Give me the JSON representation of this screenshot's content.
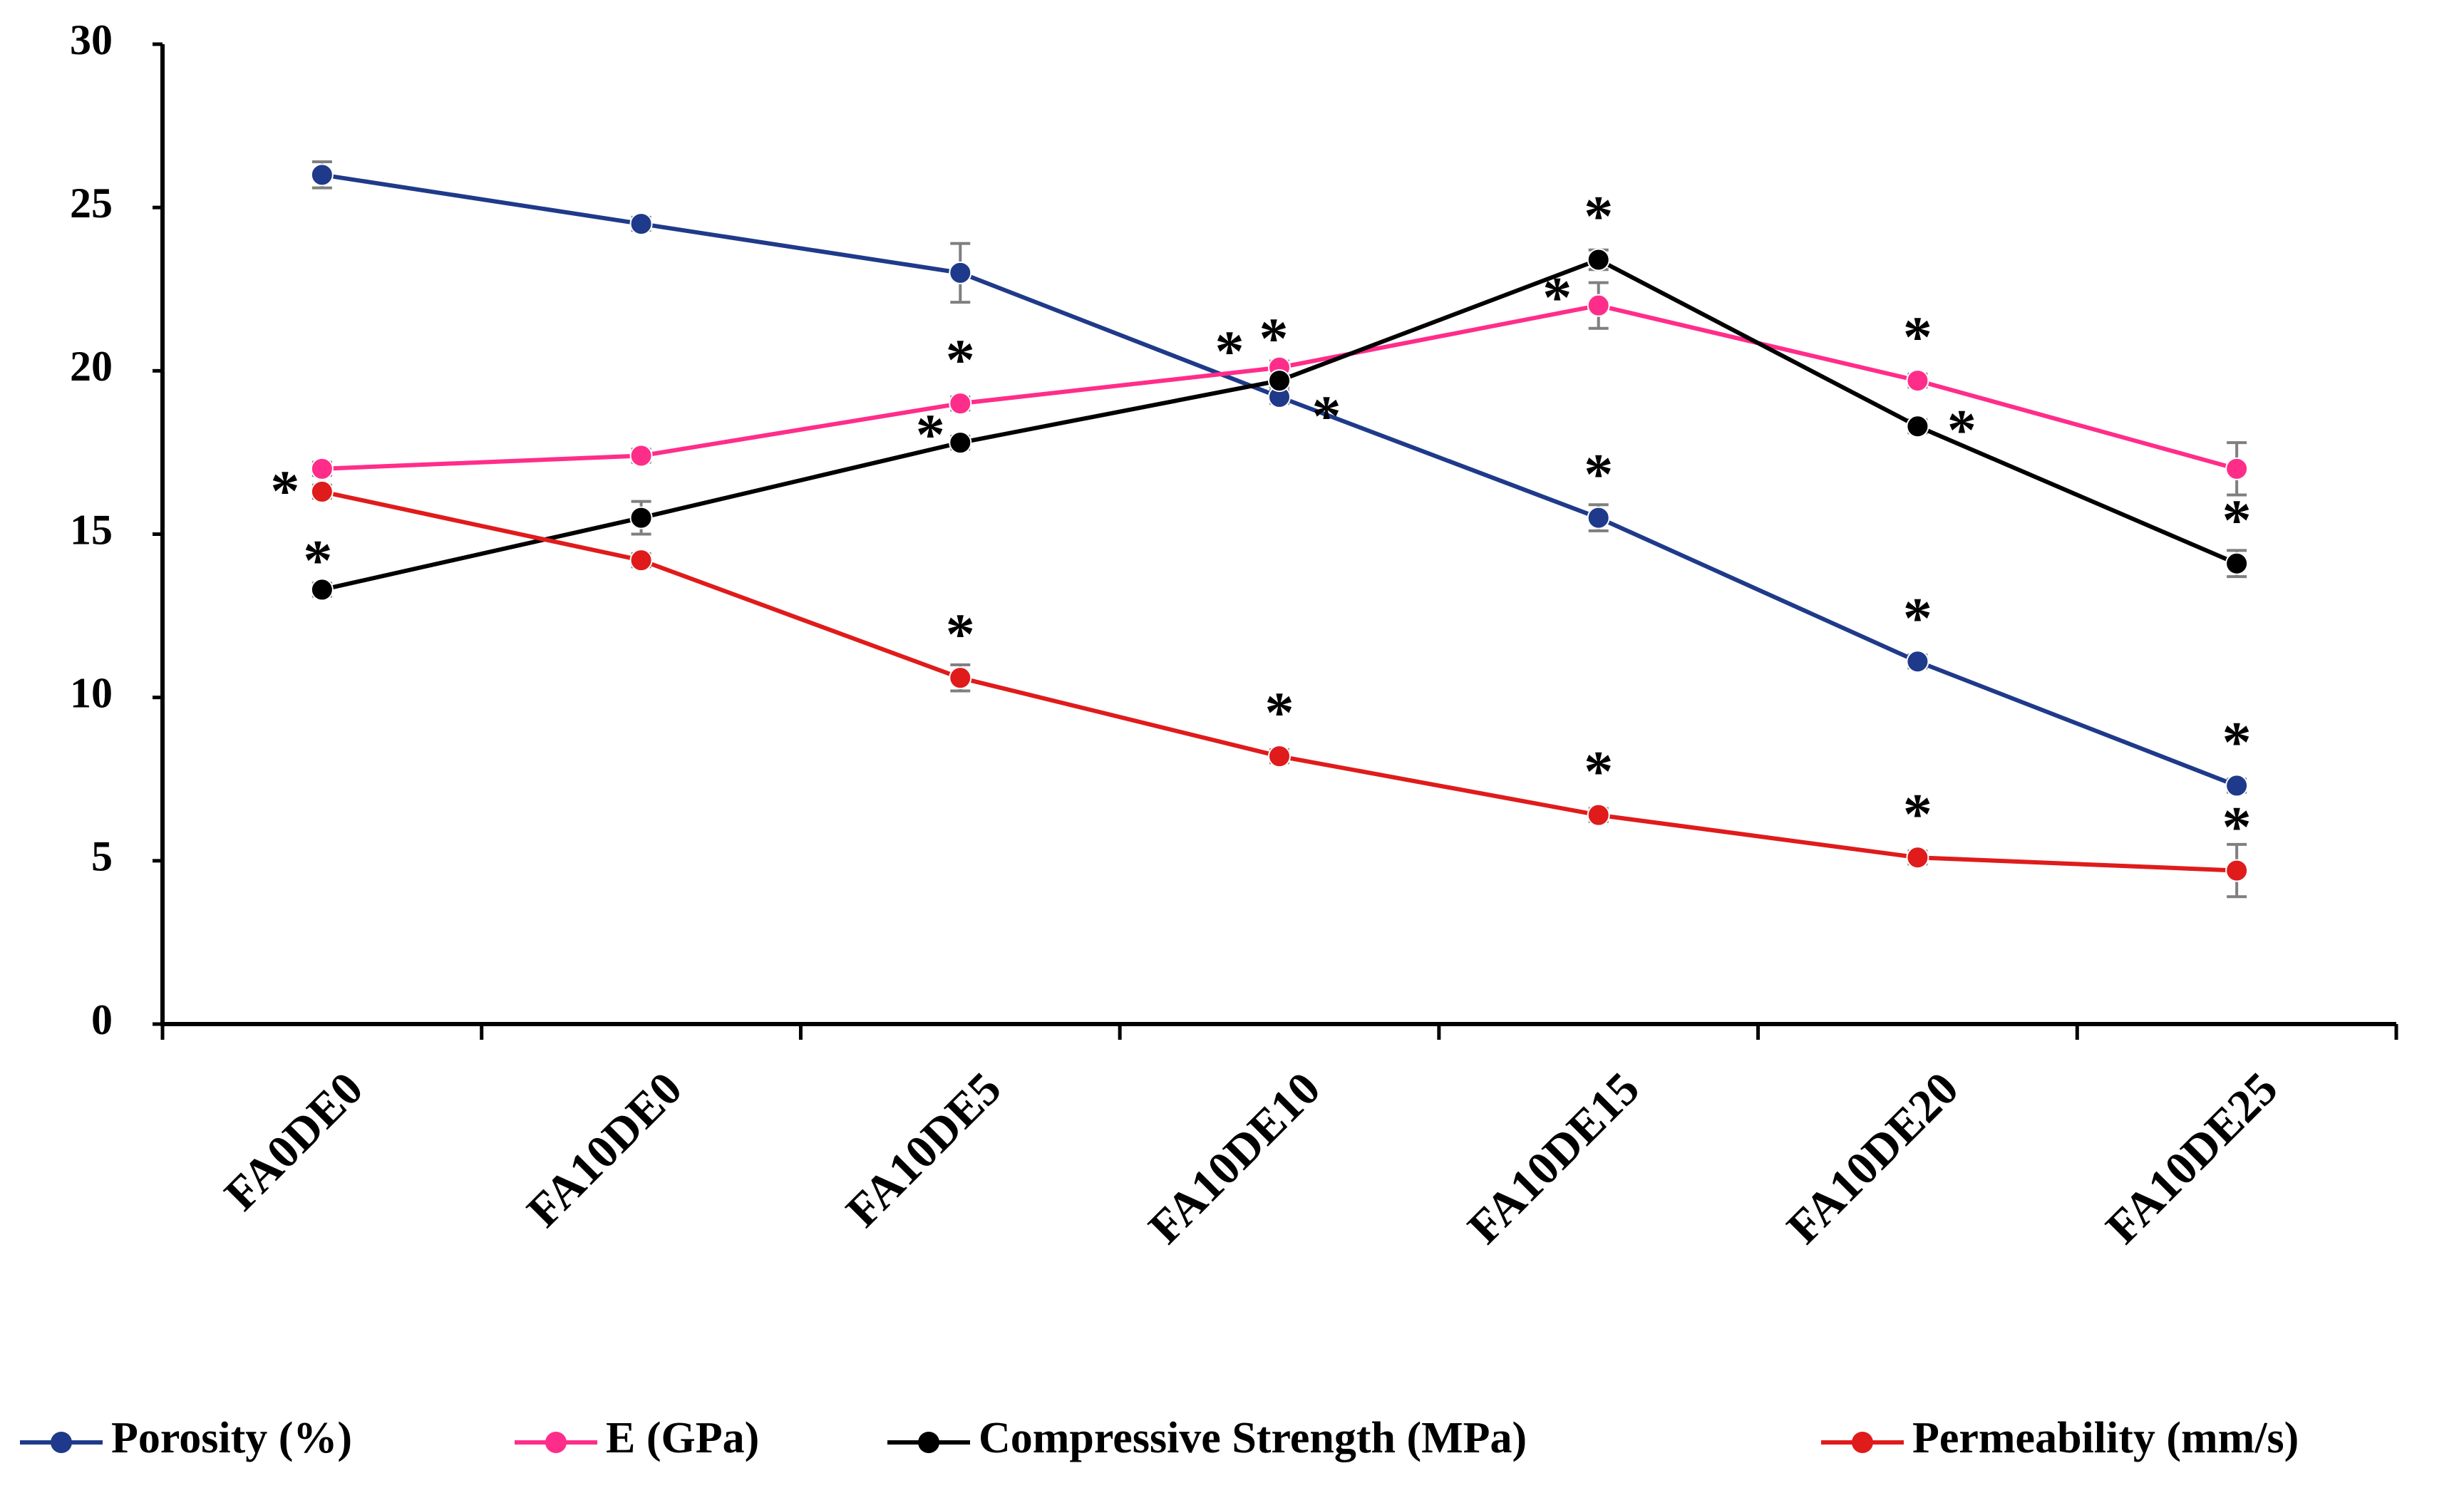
{
  "chart_data": {
    "type": "line",
    "title": "",
    "xlabel": "",
    "ylabel": "",
    "ylim": [
      0,
      30
    ],
    "yticks": [
      0,
      5,
      10,
      15,
      20,
      25,
      30
    ],
    "grid": false,
    "legend_position": "bottom",
    "categories": [
      "FA0DE0",
      "FA10DE0",
      "FA10DE5",
      "FA10DE10",
      "FA10DE15",
      "FA10DE20",
      "FA10DE25"
    ],
    "significance_marker": "*",
    "series": [
      {
        "name": "Porosity (%)",
        "color": "#1f3a8a",
        "values": [
          26.0,
          24.5,
          23.0,
          19.2,
          15.5,
          11.1,
          7.3
        ],
        "errors": [
          0.4,
          0.2,
          0.9,
          0.2,
          0.4,
          0.2,
          0.2
        ],
        "significant": [
          false,
          false,
          false,
          true,
          true,
          true,
          true
        ]
      },
      {
        "name": "E (GPa)",
        "color": "#ff2d8a",
        "values": [
          17.0,
          17.4,
          19.0,
          20.1,
          22.0,
          19.7,
          17.0
        ],
        "errors": [
          0.2,
          0.2,
          0.2,
          0.2,
          0.7,
          0.2,
          0.8
        ],
        "significant": [
          false,
          false,
          true,
          true,
          true,
          true,
          false
        ]
      },
      {
        "name": "Compressive Strength (MPa)",
        "color": "#000000",
        "values": [
          13.3,
          15.5,
          17.8,
          19.7,
          23.4,
          18.3,
          14.1
        ],
        "errors": [
          0.2,
          0.5,
          0.2,
          0.2,
          0.3,
          0.2,
          0.4
        ],
        "significant": [
          true,
          false,
          true,
          true,
          true,
          true,
          true
        ]
      },
      {
        "name": "Permeability (mm/s)",
        "color": "#e01b1b",
        "values": [
          16.3,
          14.2,
          10.6,
          8.2,
          6.4,
          5.1,
          4.7
        ],
        "errors": [
          0.2,
          0.2,
          0.4,
          0.2,
          0.2,
          0.2,
          0.8
        ],
        "significant": [
          true,
          false,
          true,
          true,
          true,
          true,
          true
        ]
      }
    ]
  }
}
